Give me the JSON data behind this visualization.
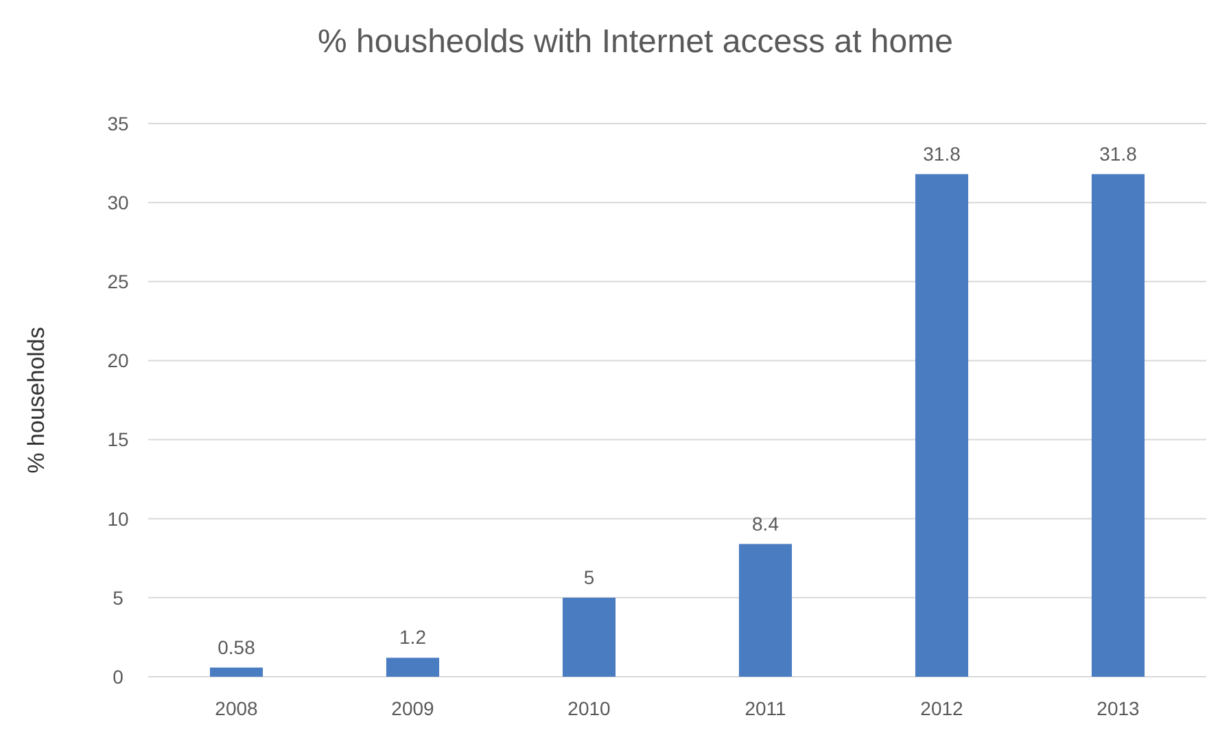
{
  "chart_data": {
    "type": "bar",
    "title": "% housheolds with Internet access at home",
    "ylabel": "% households",
    "categories": [
      "2008",
      "2009",
      "2010",
      "2011",
      "2012",
      "2013"
    ],
    "values": [
      0.58,
      1.2,
      5,
      8.4,
      31.8,
      31.8
    ],
    "color": "#4a7cc2",
    "ylim": [
      0,
      35
    ],
    "yticks": [
      0,
      5,
      10,
      15,
      20,
      25,
      30,
      35
    ],
    "grid": "y",
    "data_labels": true
  }
}
